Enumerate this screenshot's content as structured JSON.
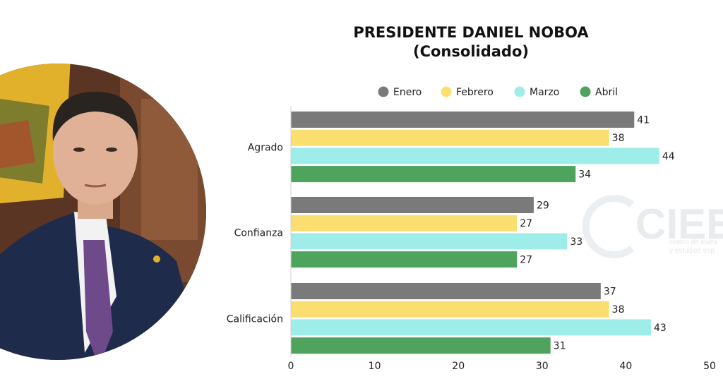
{
  "chart_data": {
    "type": "bar",
    "orientation": "horizontal",
    "title": "PRESIDENTE DANIEL  NOBOA",
    "subtitle": "(Consolidado)",
    "categories": [
      "Agrado",
      "Confianza",
      "Calificación"
    ],
    "series": [
      {
        "name": "Enero",
        "color": "#7a7a7a",
        "values": [
          41,
          29,
          37
        ]
      },
      {
        "name": "Febrero",
        "color": "#fadf70",
        "values": [
          38,
          27,
          38
        ]
      },
      {
        "name": "Marzo",
        "color": "#9fede8",
        "values": [
          44,
          33,
          43
        ]
      },
      {
        "name": "Abril",
        "color": "#4ea35d",
        "values": [
          34,
          27,
          31
        ]
      }
    ],
    "xlim": [
      0,
      50
    ],
    "xticks": [
      "0",
      "10",
      "20",
      "30",
      "40",
      "50"
    ],
    "legend_position": "top",
    "grid": false
  },
  "watermark": {
    "text": "CIEE",
    "line1": "centro de inves",
    "line2": "y estudios esp"
  }
}
